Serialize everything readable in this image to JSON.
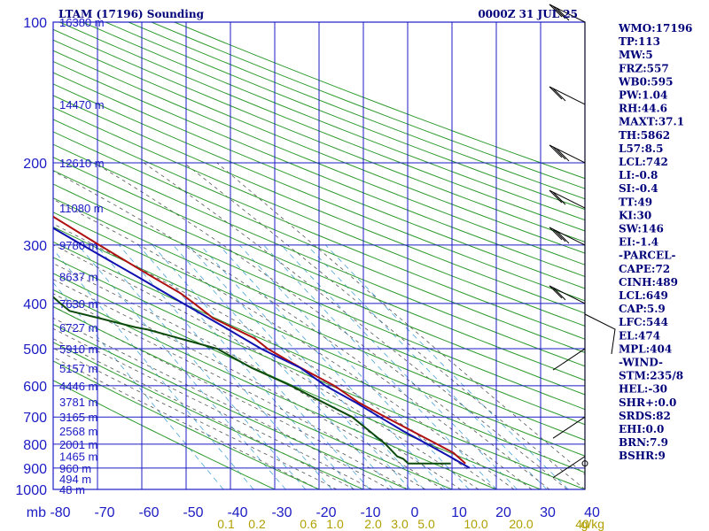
{
  "header": {
    "station": "LTAM (17196) Sounding",
    "time": "0000Z 31 JUL 25"
  },
  "axis_unit_label": "mb",
  "mixing_ratio_unit": "g/kg",
  "colors": {
    "isobar": "#1b1bc4",
    "dry_adiabat": "#2e9a2e",
    "moist_adiabat": "#555555",
    "mixing_ratio": "#4aa3d8",
    "temperature": "#b01010",
    "dewpoint": "#0c4a0c",
    "parcel": "#1010b0",
    "label_blue": "#1b1bc4",
    "label_yellow": "#b1a000",
    "title": "#00007a"
  },
  "indices": [
    "WMO:17196",
    "TP:113",
    "MW:5",
    "FRZ:557",
    "WB0:595",
    "PW:1.04",
    "RH:44.6",
    "MAXT:37.1",
    "TH:5862",
    "L57:8.5",
    "LCL:742",
    "LI:-0.8",
    "SI:-0.4",
    "TT:49",
    "KI:30",
    "SW:146",
    "EI:-1.4",
    "-PARCEL-",
    "CAPE:72",
    "CINH:489",
    "LCL:649",
    "CAP:5.9",
    "LFC:544",
    "EL:474",
    "MPL:404",
    "-WIND-",
    "STM:235/8",
    "HEL:-30",
    "SHR+:0.0",
    "SRDS:82",
    "EHI:0.0",
    "BRN:7.9",
    "BSHR:9"
  ],
  "chart_data": {
    "type": "line",
    "diagram": "skew-T log-P",
    "title": "LTAM (17196) Sounding",
    "subtitle": "0000Z 31 JUL 25",
    "xlabel": "",
    "ylabel": "mb",
    "xlim": [
      -80,
      40
    ],
    "ylim": [
      1000,
      100
    ],
    "y_scale": "log",
    "temperature_ticks": [
      -80,
      -70,
      -60,
      -50,
      -40,
      -30,
      -20,
      -10,
      0,
      10,
      20,
      30,
      40
    ],
    "pressure_ticks": [
      100,
      200,
      300,
      400,
      500,
      600,
      700,
      800,
      900,
      1000
    ],
    "mixing_ratio_labels": [
      "0.1",
      "0.2",
      "0.6",
      "1.0",
      "2.0",
      "3.0",
      "5.0",
      "10.0",
      "20.0",
      "40"
    ],
    "height_labels": [
      {
        "p": 100,
        "label": "16380 m"
      },
      {
        "p": 150,
        "label": "14470 m"
      },
      {
        "p": 200,
        "label": "12610 m"
      },
      {
        "p": 250,
        "label": "11080 m"
      },
      {
        "p": 300,
        "label": "9780 m"
      },
      {
        "p": 350,
        "label": "8637 m"
      },
      {
        "p": 400,
        "label": "7630 m"
      },
      {
        "p": 450,
        "label": "6727 m"
      },
      {
        "p": 500,
        "label": "5910 m"
      },
      {
        "p": 550,
        "label": "5157 m"
      },
      {
        "p": 600,
        "label": "4446 m"
      },
      {
        "p": 650,
        "label": "3781 m"
      },
      {
        "p": 700,
        "label": "3165 m"
      },
      {
        "p": 750,
        "label": "2568 m"
      },
      {
        "p": 800,
        "label": "2001 m"
      },
      {
        "p": 850,
        "label": "1465 m"
      },
      {
        "p": 900,
        "label": "960 m"
      },
      {
        "p": 950,
        "label": "494 m"
      },
      {
        "p": 1000,
        "label": "48 m"
      }
    ],
    "series": [
      {
        "kind": "temperature",
        "points": [
          [
            100,
            -72.4
          ],
          [
            110,
            -72.1
          ],
          [
            125,
            -70.4
          ],
          [
            150,
            -65.6
          ],
          [
            175,
            -59.4
          ],
          [
            200,
            -53.8
          ],
          [
            225,
            -48.2
          ],
          [
            250,
            -43.4
          ],
          [
            300,
            -35.1
          ],
          [
            350,
            -27.7
          ],
          [
            380,
            -23.6
          ],
          [
            400,
            -21.9
          ],
          [
            430,
            -19.7
          ],
          [
            475,
            -13.2
          ],
          [
            500,
            -11.7
          ],
          [
            525,
            -9.3
          ],
          [
            550,
            -6.9
          ],
          [
            600,
            -1.9
          ],
          [
            650,
            1.1
          ],
          [
            700,
            5.2
          ],
          [
            750,
            9.2
          ],
          [
            800,
            13.0
          ],
          [
            835,
            15.5
          ],
          [
            880,
            16.7
          ]
        ]
      },
      {
        "kind": "dewpoint",
        "points": [
          [
            300,
            -60.3
          ],
          [
            350,
            -55.2
          ],
          [
            400,
            -52.1
          ],
          [
            415,
            -51.1
          ],
          [
            430,
            -45.4
          ],
          [
            450,
            -38.5
          ],
          [
            455,
            -36.1
          ],
          [
            500,
            -23.1
          ],
          [
            550,
            -18.0
          ],
          [
            600,
            -11.7
          ],
          [
            650,
            -6.9
          ],
          [
            700,
            -2.3
          ],
          [
            750,
            -0.4
          ],
          [
            800,
            1.4
          ],
          [
            850,
            2.3
          ],
          [
            860,
            3.3
          ],
          [
            880,
            3.8
          ],
          [
            880,
            13.4
          ]
        ]
      },
      {
        "kind": "parcel",
        "points": [
          [
            130,
            -80.0
          ],
          [
            200,
            -57.0
          ],
          [
            250,
            -48.0
          ],
          [
            300,
            -38.9
          ],
          [
            350,
            -31.0
          ],
          [
            400,
            -24.4
          ],
          [
            450,
            -18.4
          ],
          [
            500,
            -13.2
          ],
          [
            550,
            -7.0
          ],
          [
            600,
            -3.9
          ],
          [
            650,
            0.4
          ],
          [
            700,
            3.9
          ],
          [
            750,
            7.2
          ],
          [
            800,
            10.8
          ],
          [
            850,
            14.1
          ],
          [
            900,
            17.0
          ]
        ]
      }
    ],
    "wind_barbs": [
      {
        "p": 100,
        "barbs": 3
      },
      {
        "p": 150,
        "barbs": 2
      },
      {
        "p": 200,
        "barbs": 3
      },
      {
        "p": 250,
        "barbs": 2
      },
      {
        "p": 300,
        "barbs": 3
      },
      {
        "p": 400,
        "barbs": 2
      },
      {
        "p": 500,
        "barbs": 0
      },
      {
        "p": 700,
        "barbs": 0
      },
      {
        "p": 850,
        "barbs": 0
      }
    ],
    "grid": true
  }
}
